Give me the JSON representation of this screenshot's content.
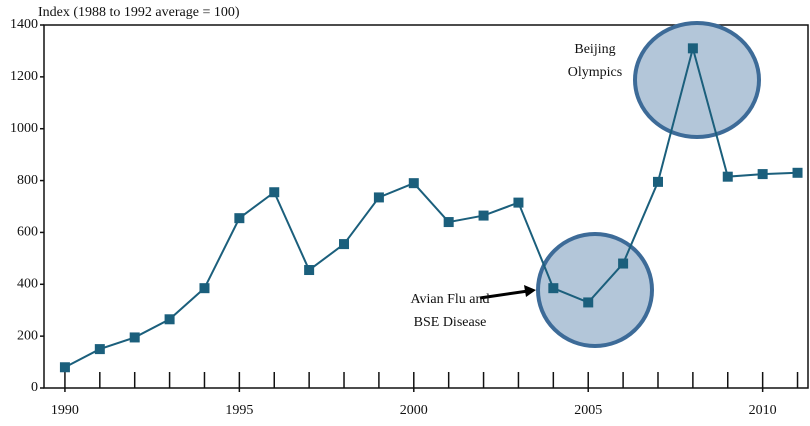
{
  "chart_data": {
    "type": "line",
    "y_axis_label": "Index (1988 to 1992 average = 100)",
    "x": [
      1990,
      1991,
      1992,
      1993,
      1994,
      1995,
      1996,
      1997,
      1998,
      1999,
      2000,
      2001,
      2002,
      2003,
      2004,
      2005,
      2006,
      2007,
      2008,
      2009,
      2010,
      2011
    ],
    "series": [
      {
        "color": "#1b5f7c",
        "values": [
          80,
          150,
          195,
          265,
          385,
          655,
          755,
          455,
          555,
          735,
          790,
          640,
          665,
          715,
          385,
          330,
          480,
          795,
          1310,
          815,
          825,
          830
        ]
      }
    ],
    "xlim": [
      1989.4,
      2011.3
    ],
    "xticks": [
      1990,
      1995,
      2000,
      2005,
      2010
    ],
    "ylim": [
      0,
      1400
    ],
    "yticks": [
      0,
      200,
      400,
      600,
      800,
      1000,
      1200,
      1400
    ],
    "grid": false,
    "annotations": [
      {
        "lines": [
          "Beijing",
          "Olympics"
        ]
      },
      {
        "lines": [
          "Avian Flu and",
          "BSE Disease"
        ]
      }
    ]
  }
}
